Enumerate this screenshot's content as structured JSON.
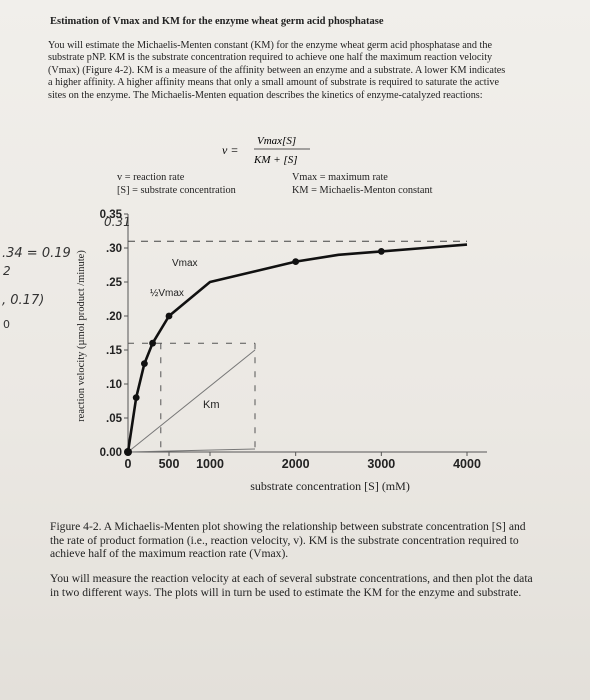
{
  "header": {
    "title": "Estimation of Vmax and KM for the enzyme wheat germ acid phosphatase"
  },
  "intro": {
    "text": "You will estimate the Michaelis-Menten constant (KM) for the enzyme wheat germ acid phosphatase and the substrate pNP. KM is the substrate concentration required to achieve one half the maximum reaction velocity (Vmax) (Figure 4-2). KM is a measure of the affinity between an enzyme and a substrate. A lower KM indicates a higher affinity. A higher affinity means that only a small amount of substrate is required to saturate the active sites on the enzyme. The Michaelis-Menten equation describes the kinetics of enzyme-catalyzed reactions:"
  },
  "equation": {
    "lhs": "v =",
    "numerator": "Vmax[S]",
    "denominator": "KM + [S]"
  },
  "definitions": {
    "v": "v = reaction rate",
    "s": "[S] = substrate concentration",
    "vmax": "Vmax = maximum rate",
    "km": "KM = Michaelis-Menton constant"
  },
  "chart_data": {
    "type": "line",
    "title": "",
    "xlabel": "substrate concentration [S] (mM)",
    "ylabel": "reaction velocity (µmol product /minute)",
    "xlim": [
      0,
      4000
    ],
    "ylim": [
      0,
      0.35
    ],
    "x_ticks": [
      "0",
      "500",
      "1000",
      "2000",
      "3000",
      "4000"
    ],
    "y_ticks": [
      "0.00",
      ".05",
      ".10",
      ".15",
      ".20",
      ".25",
      ".30",
      "0.35"
    ],
    "series": [
      {
        "values": [
          {
            "x": 0,
            "y": 0.0
          },
          {
            "x": 100,
            "y": 0.08
          },
          {
            "x": 200,
            "y": 0.13
          },
          {
            "x": 300,
            "y": 0.16
          },
          {
            "x": 500,
            "y": 0.2
          },
          {
            "x": 1000,
            "y": 0.25
          },
          {
            "x": 2000,
            "y": 0.28
          },
          {
            "x": 2500,
            "y": 0.29
          },
          {
            "x": 3000,
            "y": 0.295
          },
          {
            "x": 3500,
            "y": 0.3
          },
          {
            "x": 4000,
            "y": 0.305
          }
        ]
      }
    ],
    "annotations": [
      "Vmax",
      "½Vmax",
      "Km"
    ],
    "handwritten": [
      "0.31",
      ".34 = 0.19",
      "2",
      ", 0.17)",
      "0"
    ],
    "dashed_line_y": 0.31,
    "grid": false
  },
  "caption": {
    "text": "Figure 4-2. A Michaelis-Menten plot showing the relationship between substrate concentration [S] and the rate of product formation (i.e., reaction velocity, v). KM is the substrate concentration required to achieve half of the maximum reaction rate (Vmax)."
  },
  "outro": {
    "text": "You will measure the reaction velocity at each of several substrate concentrations, and then plot the data in two different ways. The plots will in turn be used to estimate the KM for the enzyme and substrate."
  }
}
